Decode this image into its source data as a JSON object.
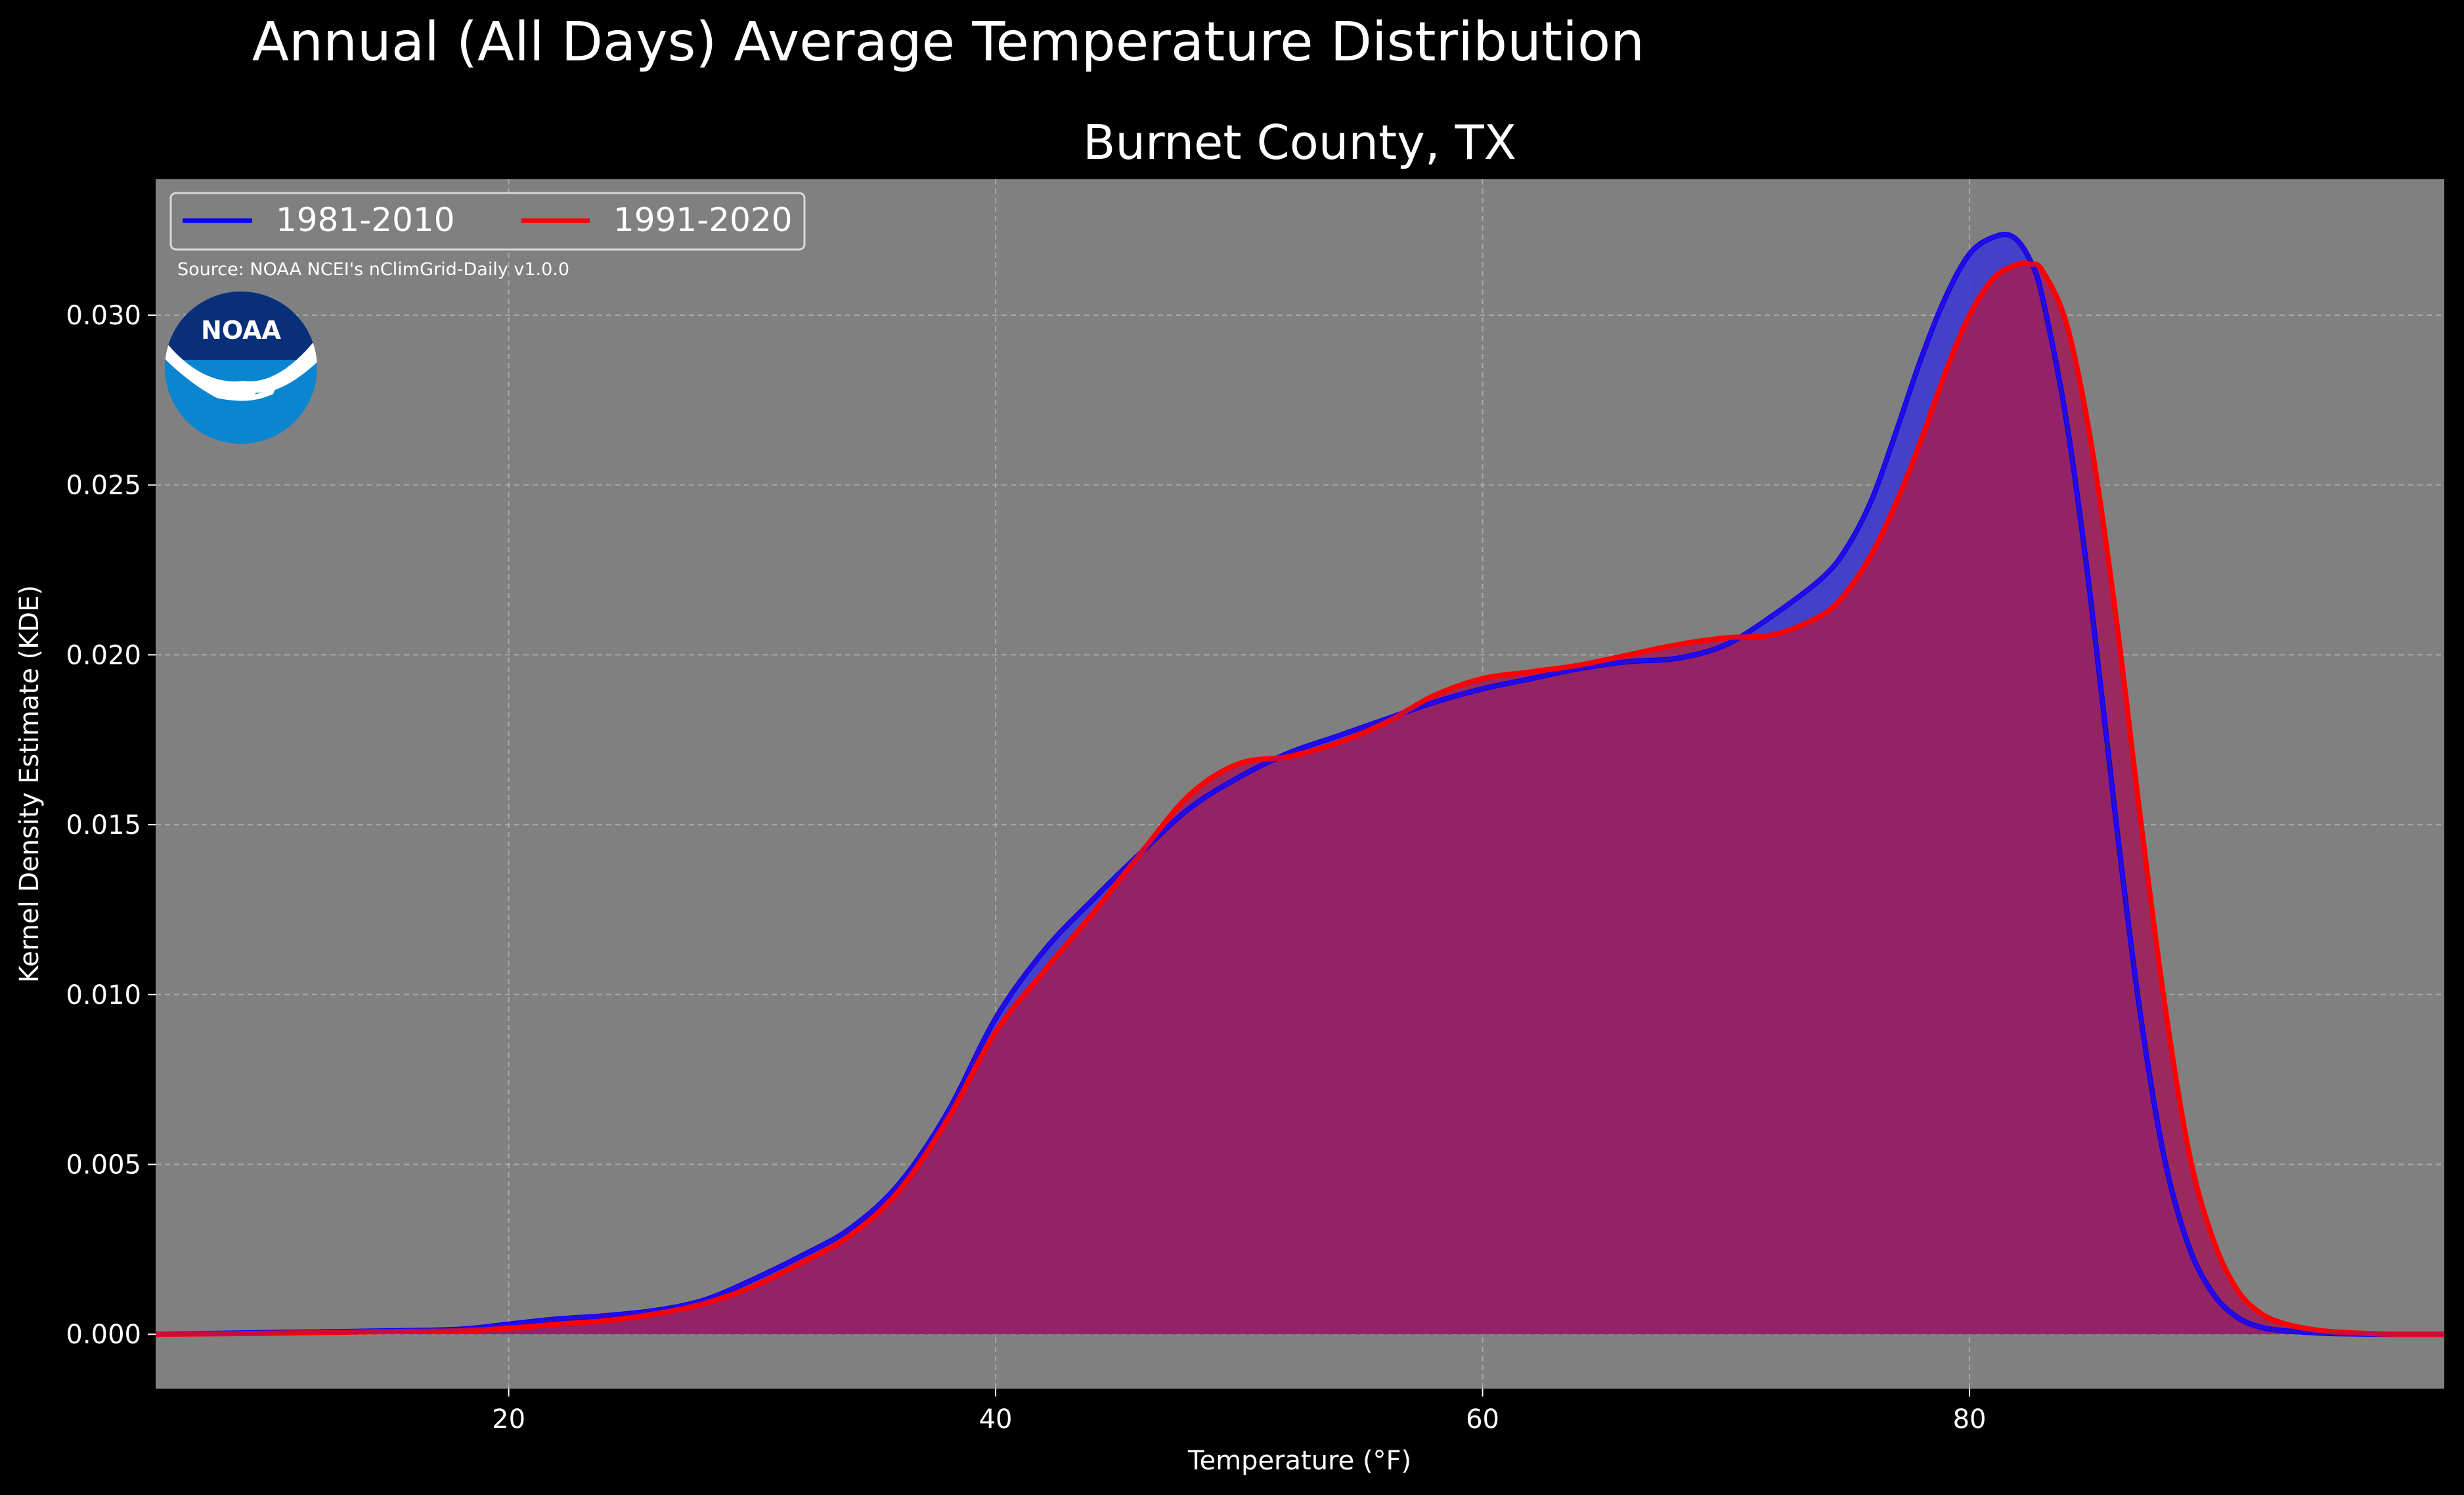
{
  "chart_data": {
    "type": "area",
    "suptitle": "Annual (All Days) Average Temperature Distribution",
    "title": "Burnet County, TX",
    "xlabel": "Temperature ($^\\circ$F)",
    "xlabel_display": "Temperature (°F)",
    "ylabel": "Kernel Density Estimate (KDE)",
    "xlim": [
      5.5,
      99.5
    ],
    "ylim": [
      -0.0016,
      0.034
    ],
    "xticks": [
      20,
      40,
      60,
      80
    ],
    "xtick_labels": [
      "20",
      "40",
      "60",
      "80"
    ],
    "yticks": [
      0.0,
      0.005,
      0.01,
      0.015,
      0.02,
      0.025,
      0.03
    ],
    "ytick_labels": [
      "0.000",
      "0.005",
      "0.010",
      "0.015",
      "0.020",
      "0.025",
      "0.030"
    ],
    "grid": true,
    "legend_position": "top-left",
    "source_note": "Source: NOAA NCEI's nClimGrid-Daily v1.0.0",
    "logo_text": "NOAA",
    "series": [
      {
        "name": "1981-2010",
        "color": "#0000ff",
        "fill": "#3a36d6",
        "x": [
          5.5,
          10,
          15,
          18,
          20,
          22,
          24,
          26,
          28,
          30,
          32,
          34,
          36,
          38,
          40,
          42,
          44,
          46,
          48,
          50,
          52,
          54,
          56,
          58,
          60,
          62,
          64,
          66,
          68,
          70,
          72,
          74,
          75,
          76,
          77,
          78,
          79,
          80,
          81,
          81.8,
          82.5,
          83,
          84,
          85,
          86,
          87,
          88,
          89,
          90,
          91,
          92,
          93,
          94,
          95,
          97,
          99.5
        ],
        "y": [
          0.0,
          5e-05,
          0.0001,
          0.00015,
          0.0003,
          0.00045,
          0.00055,
          0.0007,
          0.001,
          0.0016,
          0.0023,
          0.0031,
          0.0044,
          0.0065,
          0.0093,
          0.0113,
          0.0128,
          0.0142,
          0.0155,
          0.0164,
          0.0171,
          0.0176,
          0.0181,
          0.0186,
          0.019,
          0.0193,
          0.0196,
          0.0198,
          0.0199,
          0.0203,
          0.0212,
          0.0223,
          0.0232,
          0.0246,
          0.0266,
          0.0287,
          0.0305,
          0.0318,
          0.0323,
          0.0323,
          0.0316,
          0.0305,
          0.0268,
          0.0215,
          0.0152,
          0.0095,
          0.0052,
          0.0026,
          0.0012,
          0.0005,
          0.0002,
          0.0001,
          5e-05,
          2e-05,
          0.0,
          0.0
        ]
      },
      {
        "name": "1991-2020",
        "color": "#ff0000",
        "fill": "#9c1f5c",
        "x": [
          5.5,
          10,
          15,
          18,
          20,
          22,
          24,
          26,
          28,
          30,
          32,
          34,
          36,
          38,
          40,
          42,
          44,
          46,
          48,
          50,
          52,
          54,
          56,
          58,
          60,
          62,
          64,
          66,
          68,
          70,
          72,
          74,
          75,
          76,
          77,
          78,
          79,
          80,
          81,
          82,
          82.5,
          83,
          84,
          85,
          86,
          87,
          88,
          89,
          90,
          91,
          92,
          93,
          94,
          95,
          97,
          99.5
        ],
        "y": [
          0.0,
          3e-05,
          8e-05,
          0.0001,
          0.00018,
          0.0003,
          0.0004,
          0.0006,
          0.0009,
          0.0014,
          0.0021,
          0.0029,
          0.0042,
          0.0063,
          0.0089,
          0.0107,
          0.0124,
          0.0142,
          0.0159,
          0.0168,
          0.017,
          0.0174,
          0.018,
          0.0188,
          0.0193,
          0.0195,
          0.0197,
          0.02,
          0.0203,
          0.0205,
          0.0206,
          0.0212,
          0.0219,
          0.023,
          0.0245,
          0.0263,
          0.0283,
          0.03,
          0.0311,
          0.0315,
          0.0315,
          0.0313,
          0.0297,
          0.0262,
          0.0212,
          0.0153,
          0.0098,
          0.0054,
          0.0028,
          0.0013,
          0.0006,
          0.0003,
          0.00015,
          7e-05,
          1e-05,
          0.0
        ]
      }
    ]
  }
}
